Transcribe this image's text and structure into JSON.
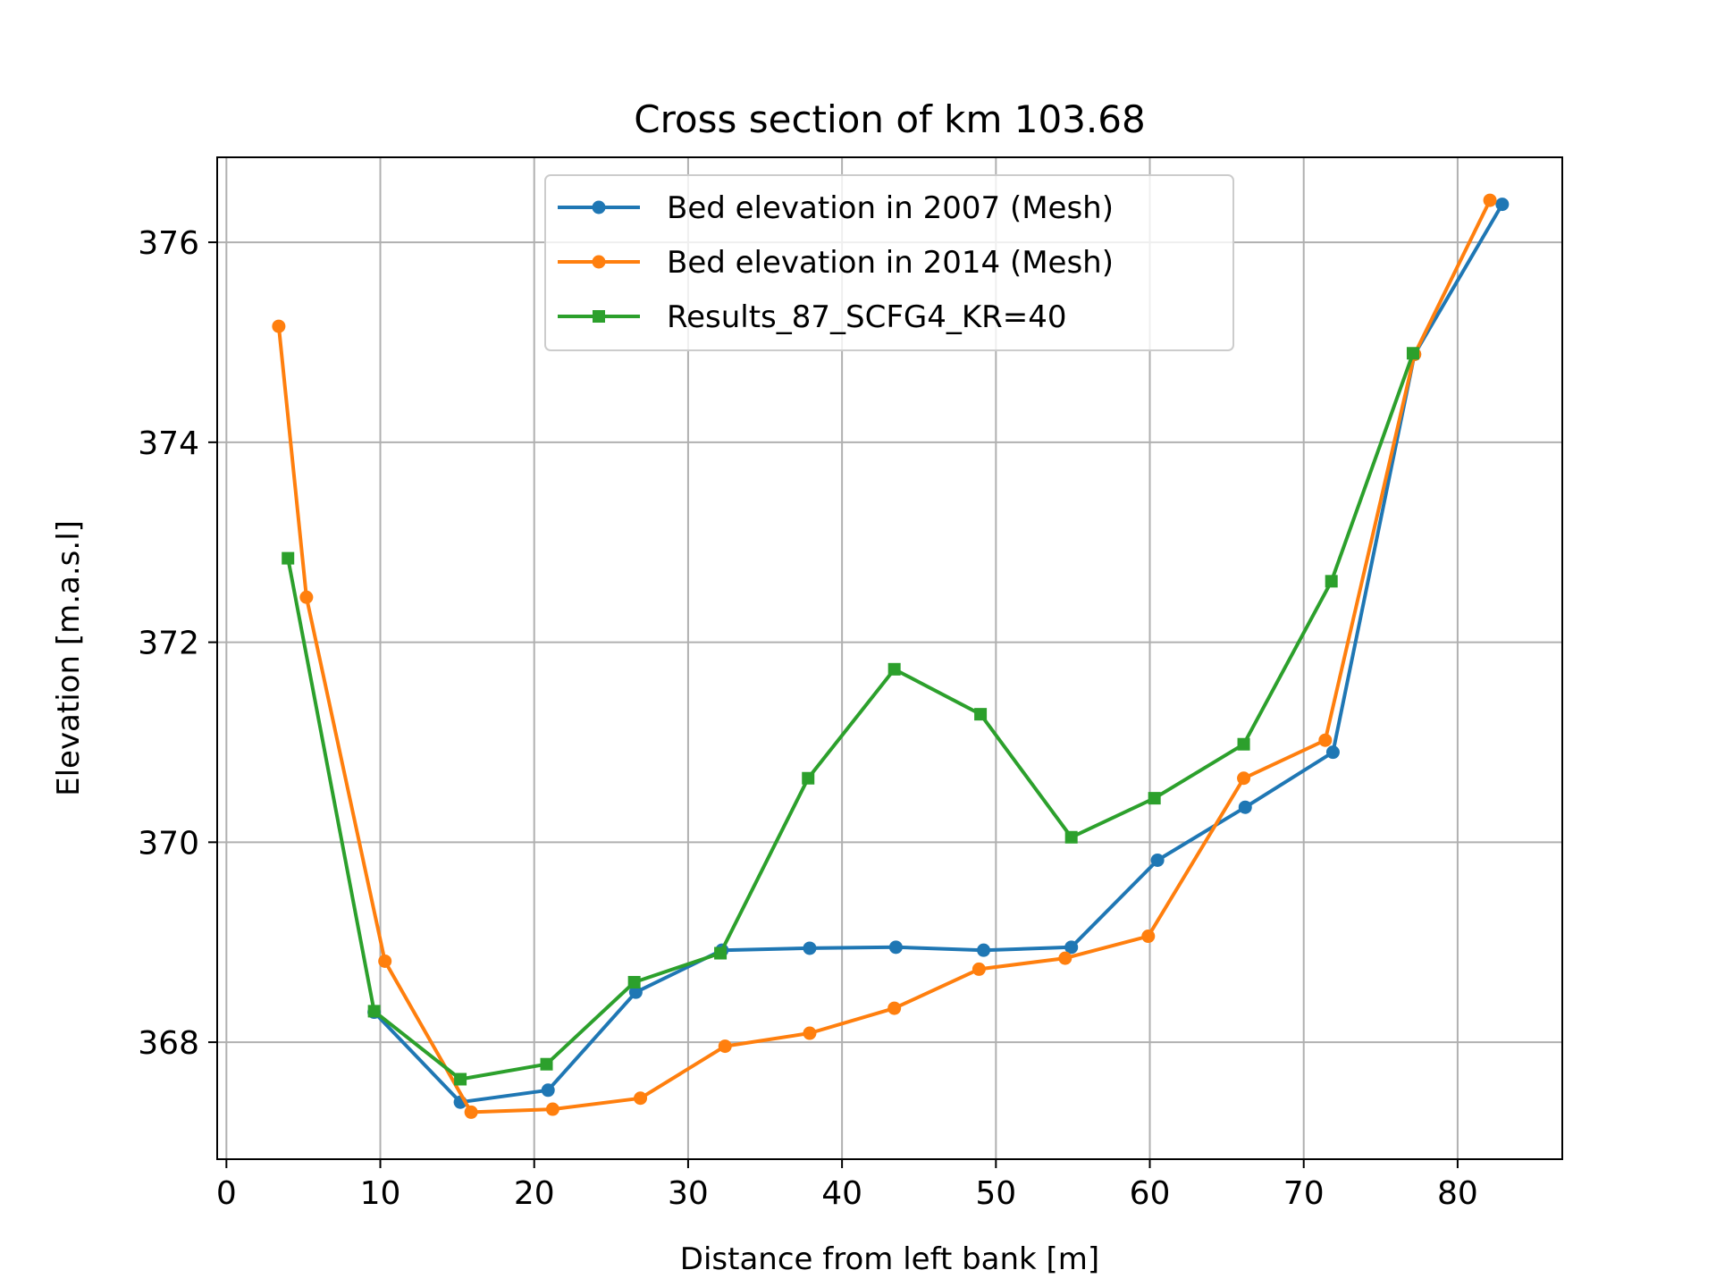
{
  "chart_data": {
    "type": "line",
    "title": "Cross section of km 103.68",
    "xlabel": "Distance from left bank [m]",
    "ylabel": "Elevation [m.a.s.l]",
    "xlim": [
      -0.6,
      86.8
    ],
    "ylim": [
      366.83,
      376.85
    ],
    "xticks": [
      0,
      10,
      20,
      30,
      40,
      50,
      60,
      70,
      80
    ],
    "yticks": [
      368,
      370,
      372,
      374,
      376
    ],
    "grid": true,
    "legend_position": "upper-center",
    "series": [
      {
        "name": "Bed elevation in 2007 (Mesh)",
        "color": "#1f77b4",
        "marker": "circle",
        "x": [
          9.6,
          15.2,
          20.9,
          26.6,
          32.2,
          37.9,
          43.5,
          49.2,
          54.9,
          60.5,
          66.2,
          71.9,
          77.2,
          82.9
        ],
        "y": [
          368.3,
          367.4,
          367.52,
          368.5,
          368.92,
          368.94,
          368.95,
          368.92,
          368.95,
          369.82,
          370.35,
          370.9,
          374.88,
          376.38
        ]
      },
      {
        "name": "Bed elevation in 2014 (Mesh)",
        "color": "#ff7f0e",
        "marker": "circle",
        "x": [
          3.4,
          5.2,
          10.3,
          15.9,
          21.2,
          26.9,
          32.4,
          37.9,
          43.4,
          48.9,
          54.5,
          59.9,
          66.1,
          71.4,
          77.2,
          82.1
        ],
        "y": [
          375.16,
          372.45,
          368.81,
          367.3,
          367.33,
          367.44,
          367.96,
          368.09,
          368.34,
          368.73,
          368.84,
          369.06,
          370.64,
          371.02,
          374.88,
          376.42
        ]
      },
      {
        "name": "Results_87_SCFG4_KR=40",
        "color": "#2ca02c",
        "marker": "square",
        "x": [
          4.0,
          9.6,
          15.2,
          20.8,
          26.5,
          32.1,
          37.8,
          43.4,
          49.0,
          54.9,
          60.3,
          66.1,
          71.8,
          77.1
        ],
        "y": [
          372.84,
          368.31,
          367.63,
          367.78,
          368.6,
          368.89,
          370.64,
          371.73,
          371.28,
          370.05,
          370.44,
          370.98,
          372.61,
          374.89
        ]
      }
    ]
  }
}
